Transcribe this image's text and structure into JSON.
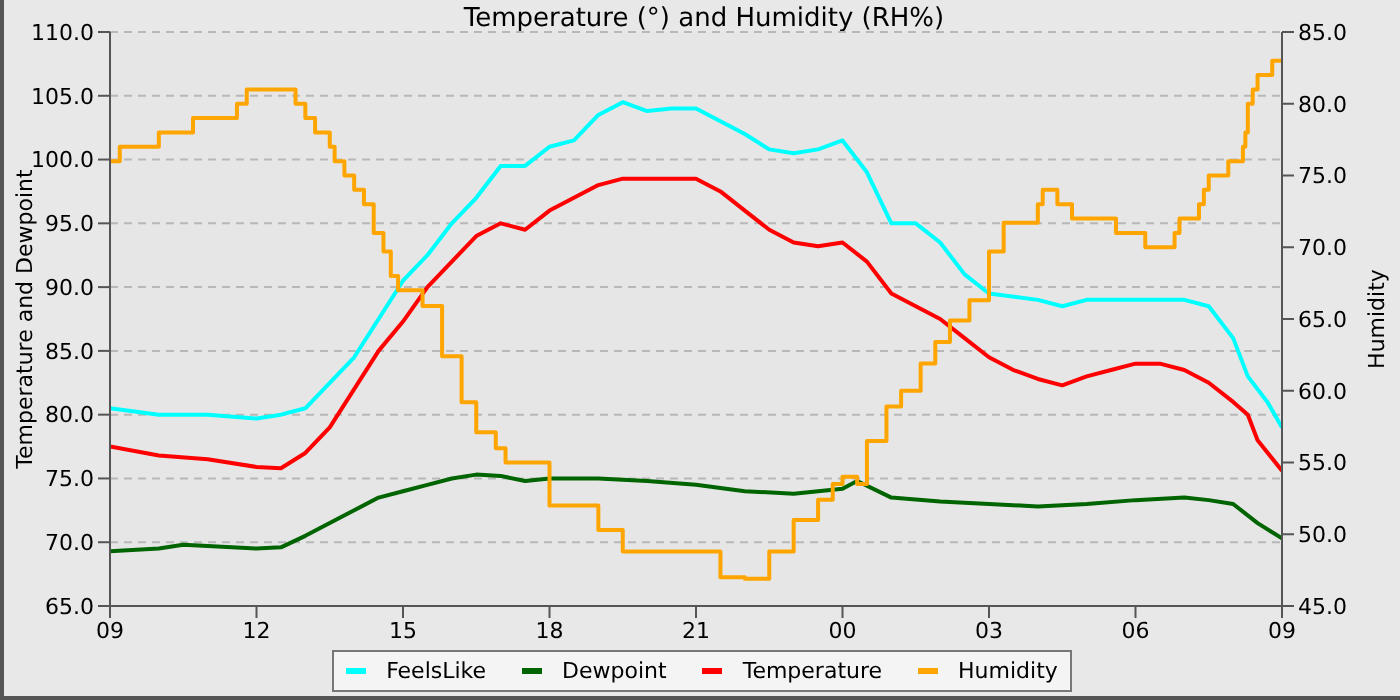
{
  "chart_data": {
    "type": "line",
    "title": "Temperature (°) and Humidity (RH%)",
    "ylabel": "Temperature and Dewpoint",
    "y2label": "Humidity",
    "xlim": [
      9,
      33
    ],
    "xticks": [
      {
        "value": 9,
        "label": "09"
      },
      {
        "value": 12,
        "label": "12"
      },
      {
        "value": 15,
        "label": "15"
      },
      {
        "value": 18,
        "label": "18"
      },
      {
        "value": 21,
        "label": "21"
      },
      {
        "value": 24,
        "label": "00"
      },
      {
        "value": 27,
        "label": "03"
      },
      {
        "value": 30,
        "label": "06"
      },
      {
        "value": 33,
        "label": "09"
      }
    ],
    "ylim": [
      65,
      110
    ],
    "yticks": [
      {
        "value": 65,
        "label": "65.0"
      },
      {
        "value": 70,
        "label": "70.0"
      },
      {
        "value": 75,
        "label": "75.0"
      },
      {
        "value": 80,
        "label": "80.0"
      },
      {
        "value": 85,
        "label": "85.0"
      },
      {
        "value": 90,
        "label": "90.0"
      },
      {
        "value": 95,
        "label": "95.0"
      },
      {
        "value": 100,
        "label": "100.0"
      },
      {
        "value": 105,
        "label": "105.0"
      },
      {
        "value": 110,
        "label": "110.0"
      }
    ],
    "y2lim": [
      45,
      85
    ],
    "y2ticks": [
      {
        "value": 45,
        "label": "45.0"
      },
      {
        "value": 50,
        "label": "50.0"
      },
      {
        "value": 55,
        "label": "55.0"
      },
      {
        "value": 60,
        "label": "60.0"
      },
      {
        "value": 65,
        "label": "65.0"
      },
      {
        "value": 70,
        "label": "70.0"
      },
      {
        "value": 75,
        "label": "75.0"
      },
      {
        "value": 80,
        "label": "80.0"
      },
      {
        "value": 85,
        "label": "85.0"
      }
    ],
    "grid": true,
    "legend": "bottom",
    "marker": "none",
    "line_style": "solid",
    "series": [
      {
        "name": "FeelsLike",
        "color": "#00ffff",
        "x": [
          9,
          10,
          11,
          12,
          12.5,
          13,
          13.5,
          14,
          14.5,
          15,
          15.5,
          16,
          16.5,
          17,
          17.5,
          18,
          18.5,
          19,
          19.5,
          20,
          20.5,
          21,
          21.5,
          22,
          22.5,
          23,
          23.5,
          24,
          24.5,
          25,
          25.5,
          26,
          26.5,
          27,
          28,
          28.5,
          29,
          30,
          31,
          31.5,
          32,
          32.3,
          32.7,
          33
        ],
        "values": [
          80.5,
          80,
          80,
          79.7,
          80,
          80.5,
          82.5,
          84.5,
          87.5,
          90.5,
          92.5,
          95,
          97,
          99.5,
          99.5,
          101,
          101.5,
          103.5,
          104.5,
          103.8,
          104,
          104,
          103,
          102,
          100.8,
          100.5,
          100.8,
          101.5,
          99,
          95,
          95,
          93.5,
          91,
          89.5,
          89,
          88.5,
          89,
          89,
          89,
          88.5,
          86,
          83,
          81,
          79
        ]
      },
      {
        "name": "Dewpoint",
        "color": "#006400",
        "x": [
          9,
          10,
          10.5,
          11,
          12,
          12.5,
          13,
          13.5,
          14,
          14.5,
          15,
          15.5,
          16,
          16.5,
          17,
          17.5,
          18,
          19,
          20,
          21,
          22,
          23,
          24,
          24.3,
          25,
          26,
          27,
          28,
          29,
          30,
          31,
          31.5,
          32,
          32.5,
          33
        ],
        "values": [
          69.3,
          69.5,
          69.8,
          69.7,
          69.5,
          69.6,
          70.5,
          71.5,
          72.5,
          73.5,
          74,
          74.5,
          75,
          75.3,
          75.2,
          74.8,
          75,
          75,
          74.8,
          74.5,
          74,
          73.8,
          74.2,
          74.8,
          73.5,
          73.2,
          73,
          72.8,
          73,
          73.3,
          73.5,
          73.3,
          73,
          71.5,
          70.3
        ]
      },
      {
        "name": "Temperature",
        "color": "#ff0000",
        "x": [
          9,
          10,
          11,
          12,
          12.5,
          13,
          13.5,
          14,
          14.5,
          15,
          15.5,
          16,
          16.5,
          17,
          17.5,
          18,
          18.5,
          19,
          19.5,
          20,
          20.5,
          21,
          21.5,
          22,
          22.5,
          23,
          23.5,
          24,
          24.5,
          25,
          25.5,
          26,
          26.5,
          27,
          27.5,
          28,
          28.5,
          29,
          29.5,
          30,
          30.5,
          31,
          31.5,
          32,
          32.3,
          32.5,
          33
        ],
        "values": [
          77.5,
          76.8,
          76.5,
          75.9,
          75.8,
          77,
          79,
          82,
          85,
          87.3,
          90,
          92,
          94,
          95,
          94.5,
          96,
          97,
          98,
          98.5,
          98.5,
          98.5,
          98.5,
          97.5,
          96,
          94.5,
          93.5,
          93.2,
          93.5,
          92,
          89.5,
          88.5,
          87.5,
          86,
          84.5,
          83.5,
          82.8,
          82.3,
          83,
          83.5,
          84,
          84,
          83.5,
          82.5,
          81,
          80,
          78,
          75.6
        ]
      },
      {
        "name": "Humidity",
        "color": "#ffa500",
        "type": "step",
        "axis": "y2",
        "x": [
          9,
          9.2,
          10,
          10.7,
          11.6,
          11.8,
          12.8,
          13,
          13.2,
          13.5,
          13.6,
          13.8,
          14,
          14.2,
          14.4,
          14.6,
          14.75,
          14.9,
          15.4,
          15.8,
          16.2,
          16.5,
          16.9,
          17.1,
          18,
          19,
          19.5,
          21.5,
          22,
          22.5,
          23,
          23.5,
          23.8,
          24,
          24.3,
          24.5,
          24.9,
          25.2,
          25.6,
          25.9,
          26.2,
          26.6,
          27,
          27.3,
          28,
          28.1,
          28.4,
          28.7,
          29.6,
          30.2,
          30.8,
          30.9,
          31.3,
          31.4,
          31.5,
          31.9,
          32.2,
          32.25,
          32.3,
          32.4,
          32.5,
          32.7,
          32.8,
          33
        ],
        "values": [
          76,
          77,
          78,
          79,
          80,
          81,
          80,
          79,
          78,
          77,
          76,
          75,
          74,
          73,
          71,
          69.7,
          68,
          67,
          65.9,
          62.4,
          59.2,
          57.1,
          56,
          55,
          52,
          50.3,
          48.8,
          47,
          46.9,
          48.8,
          51,
          52.4,
          53.5,
          54,
          53.5,
          56.5,
          58.9,
          60,
          61.9,
          63.4,
          64.9,
          66.3,
          69.7,
          71.7,
          73,
          74,
          73,
          72,
          71,
          70,
          71,
          72,
          73,
          74,
          75,
          76,
          77,
          78,
          80,
          81,
          82,
          82,
          83,
          83
        ]
      }
    ]
  }
}
